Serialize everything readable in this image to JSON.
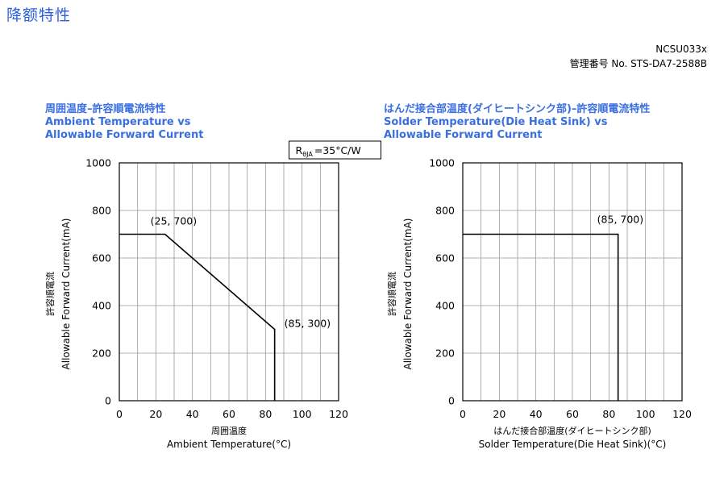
{
  "header": {
    "title": "降额特性",
    "model": "NCSU033x",
    "doc_number": "管理番号 No. STS-DA7-2588B"
  },
  "chart_data": [
    {
      "type": "line",
      "title_jp": "周囲温度–許容順電流特性",
      "title_en_1": "Ambient Temperature vs",
      "title_en_2": "Allowable Forward Current",
      "xlabel_jp": "周囲温度",
      "xlabel": "Ambient Temperature(°C)",
      "ylabel_jp": "許容順電流",
      "ylabel": "Allowable Forward Current(mA)",
      "xlim": [
        0,
        120
      ],
      "ylim": [
        0,
        1000
      ],
      "xticks": [
        0,
        20,
        40,
        60,
        80,
        100,
        120
      ],
      "yticks": [
        0,
        200,
        400,
        600,
        800,
        1000
      ],
      "grid": true,
      "thermal_resistance": {
        "prefix": "R",
        "sub": "θJA",
        "value": "=35°C/W"
      },
      "x": [
        0,
        25,
        85,
        85
      ],
      "y": [
        700,
        700,
        300,
        0
      ],
      "annotations": [
        {
          "text": "(25, 700)",
          "x": 25,
          "y": 700
        },
        {
          "text": "(85, 300)",
          "x": 85,
          "y": 300
        }
      ]
    },
    {
      "type": "line",
      "title_jp": "はんだ接合部温度(ダイヒートシンク部)–許容順電流特性",
      "title_en_1": "Solder Temperature(Die Heat Sink) vs",
      "title_en_2": "Allowable Forward Current",
      "xlabel_jp": "はんだ接合部温度(ダイヒートシンク部)",
      "xlabel": "Solder Temperature(Die Heat Sink)(°C)",
      "ylabel_jp": "許容順電流",
      "ylabel": "Allowable Forward Current(mA)",
      "xlim": [
        0,
        120
      ],
      "ylim": [
        0,
        1000
      ],
      "xticks": [
        0,
        20,
        40,
        60,
        80,
        100,
        120
      ],
      "yticks": [
        0,
        200,
        400,
        600,
        800,
        1000
      ],
      "grid": true,
      "x": [
        0,
        85,
        85
      ],
      "y": [
        700,
        700,
        0
      ],
      "annotations": [
        {
          "text": "(85, 700)",
          "x": 85,
          "y": 700
        }
      ]
    }
  ]
}
